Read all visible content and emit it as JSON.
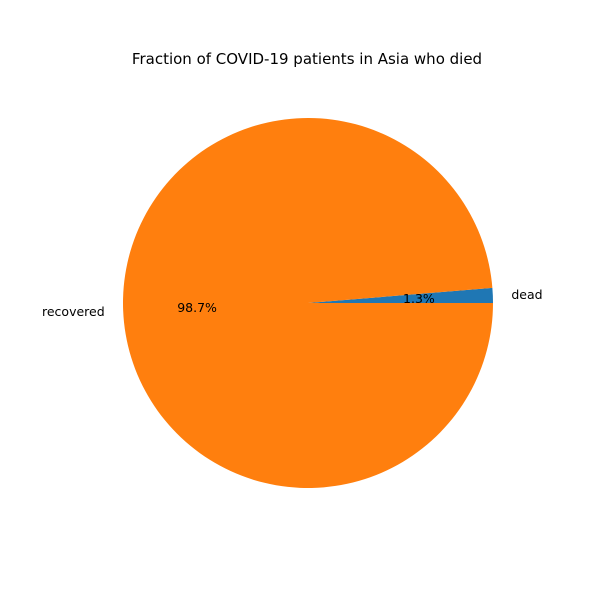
{
  "chart_data": {
    "type": "pie",
    "title": "Fraction of COVID-19 patients in Asia who died",
    "categories": [
      "dead",
      "recovered"
    ],
    "values": [
      1.3,
      98.7
    ],
    "percent_labels": [
      "1.3%",
      "98.7%"
    ],
    "colors": [
      "#1f77b4",
      "#ff7f0e"
    ],
    "start_angle_deg": 0,
    "direction": "counterclockwise",
    "legend": "none"
  }
}
